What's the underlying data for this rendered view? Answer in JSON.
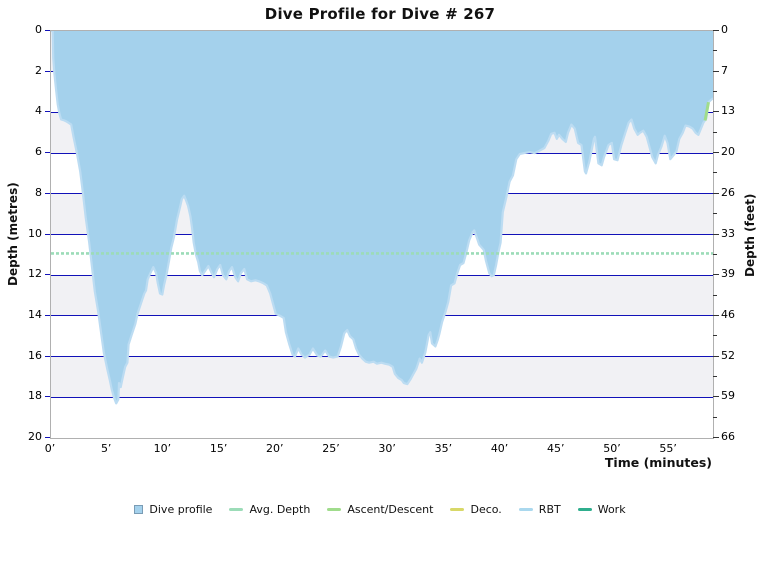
{
  "title": "Dive Profile for Dive # 267",
  "axes": {
    "x_label": "Time (minutes)",
    "left_label": "Depth (metres)",
    "right_label": "Depth (feet)",
    "x_tick_minutes": [
      0,
      5,
      10,
      15,
      20,
      25,
      30,
      35,
      40,
      45,
      50,
      55
    ],
    "x_tick_labels": [
      "0’",
      "5’",
      "10’",
      "15’",
      "20’",
      "25’",
      "30’",
      "35’",
      "40’",
      "45’",
      "50’",
      "55’"
    ],
    "left_tick_metres": [
      0,
      2,
      4,
      6,
      8,
      10,
      12,
      14,
      16,
      18,
      20
    ],
    "right_tick_labels": [
      "0",
      "7",
      "13",
      "20",
      "26",
      "33",
      "39",
      "46",
      "52",
      "59",
      "66"
    ]
  },
  "colors": {
    "profile_fill": "#a4d1ec",
    "profile_stroke": "#bcdcf2",
    "gridline": "#1111b8",
    "band_grey": "#f1f1f4",
    "band_white": "#ffffff",
    "plot_border": "#b0b0b0",
    "avg_depth_line": "#9cdcb8",
    "ascent_descent": "#a0dc8c",
    "deco": "#d8d868",
    "rbt": "#aad8ee",
    "work": "#2fae8d",
    "legend_square_border": "#7a9cb5",
    "tick_dash_dark": "#333333"
  },
  "legend": [
    {
      "label": "Dive profile",
      "type": "square",
      "color": "#a4d1ec",
      "border": "#7a9cb5"
    },
    {
      "label": "Avg. Depth",
      "type": "line",
      "color": "#9cdcb8"
    },
    {
      "label": "Ascent/Descent",
      "type": "line",
      "color": "#a0dc8c"
    },
    {
      "label": "Deco.",
      "type": "line",
      "color": "#d8d868"
    },
    {
      "label": "RBT",
      "type": "line",
      "color": "#aad8ee"
    },
    {
      "label": "Work",
      "type": "line",
      "color": "#2fae8d"
    }
  ],
  "chart_data": {
    "type": "area",
    "title": "Dive Profile for Dive # 267",
    "xlabel": "Time (minutes)",
    "ylabel_left": "Depth (metres)",
    "ylabel_right": "Depth (feet)",
    "xlim": [
      0,
      58.9
    ],
    "ylim_metres": [
      0,
      20
    ],
    "ylim_feet": [
      0,
      66
    ],
    "y_inverted": true,
    "grid": "horizontal navy gridlines every 2 m over alternating grey/white depth bands",
    "legend_position": "bottom center",
    "avg_depth_m": 10.93,
    "max_depth_m": 18.3,
    "duration_min": 58.9,
    "series": [
      {
        "name": "Dive profile",
        "points_min_depth": [
          [
            0,
            0
          ],
          [
            0.15,
            0
          ],
          [
            0.2,
            1.3
          ],
          [
            0.3,
            2.1
          ],
          [
            0.45,
            2.9
          ],
          [
            0.6,
            3.6
          ],
          [
            0.75,
            4.05
          ],
          [
            0.9,
            4.35
          ],
          [
            1.2,
            4.4
          ],
          [
            1.4,
            4.45
          ],
          [
            1.8,
            4.6
          ],
          [
            2,
            5.2
          ],
          [
            2.3,
            6
          ],
          [
            2.6,
            6.9
          ],
          [
            2.85,
            8
          ],
          [
            3.1,
            9.2
          ],
          [
            3.4,
            10.4
          ],
          [
            3.65,
            11.6
          ],
          [
            3.9,
            12.8
          ],
          [
            4.2,
            13.8
          ],
          [
            4.45,
            14.8
          ],
          [
            4.7,
            15.8
          ],
          [
            5,
            16.6
          ],
          [
            5.25,
            17.2
          ],
          [
            5.4,
            17.6
          ],
          [
            5.6,
            18
          ],
          [
            5.8,
            18.3
          ],
          [
            6,
            18.1
          ],
          [
            6.05,
            17.3
          ],
          [
            6.2,
            17.5
          ],
          [
            6.4,
            17
          ],
          [
            6.6,
            16.5
          ],
          [
            6.8,
            16.3
          ],
          [
            6.9,
            15.4
          ],
          [
            7.2,
            14.9
          ],
          [
            7.5,
            14.4
          ],
          [
            7.7,
            13.9
          ],
          [
            8,
            13.4
          ],
          [
            8.3,
            12.9
          ],
          [
            8.45,
            12.75
          ],
          [
            8.6,
            12.2
          ],
          [
            8.8,
            11.95
          ],
          [
            9.1,
            11.6
          ],
          [
            9.35,
            11.9
          ],
          [
            9.5,
            12.4
          ],
          [
            9.7,
            12.9
          ],
          [
            9.9,
            12.95
          ],
          [
            10.05,
            12.5
          ],
          [
            10.3,
            11.9
          ],
          [
            10.5,
            11.3
          ],
          [
            10.7,
            10.65
          ],
          [
            10.95,
            10.1
          ],
          [
            11.2,
            9.3
          ],
          [
            11.5,
            8.6
          ],
          [
            11.65,
            8.25
          ],
          [
            11.85,
            8.1
          ],
          [
            12,
            8.3
          ],
          [
            12.2,
            8.6
          ],
          [
            12.4,
            9.1
          ],
          [
            12.55,
            9.7
          ],
          [
            12.7,
            10.4
          ],
          [
            12.9,
            11
          ],
          [
            13.1,
            11.35
          ],
          [
            13.25,
            11.8
          ],
          [
            13.45,
            12
          ],
          [
            13.7,
            11.8
          ],
          [
            14,
            11.55
          ],
          [
            14.25,
            11.85
          ],
          [
            14.5,
            12.1
          ],
          [
            14.8,
            11.7
          ],
          [
            15.05,
            11.5
          ],
          [
            15.3,
            12
          ],
          [
            15.6,
            12.2
          ],
          [
            15.85,
            11.8
          ],
          [
            16.1,
            11.6
          ],
          [
            16.4,
            12.1
          ],
          [
            16.65,
            12.3
          ],
          [
            16.9,
            11.9
          ],
          [
            17.2,
            11.7
          ],
          [
            17.45,
            12.2
          ],
          [
            17.8,
            12.3
          ],
          [
            18.2,
            12.25
          ],
          [
            18.5,
            12.3
          ],
          [
            18.9,
            12.4
          ],
          [
            19.2,
            12.5
          ],
          [
            19.5,
            12.9
          ],
          [
            19.8,
            13.5
          ],
          [
            20,
            13.9
          ],
          [
            20.4,
            14
          ],
          [
            20.7,
            14.1
          ],
          [
            20.9,
            14.8
          ],
          [
            21.2,
            15.4
          ],
          [
            21.5,
            15.9
          ],
          [
            21.7,
            16
          ],
          [
            22,
            15.6
          ],
          [
            22.3,
            15.9
          ],
          [
            22.6,
            16.05
          ],
          [
            23,
            15.9
          ],
          [
            23.3,
            15.6
          ],
          [
            23.7,
            15.95
          ],
          [
            24,
            16
          ],
          [
            24.4,
            15.7
          ],
          [
            24.75,
            16
          ],
          [
            25.1,
            16.05
          ],
          [
            25.5,
            16
          ],
          [
            25.8,
            15.5
          ],
          [
            26.1,
            14.85
          ],
          [
            26.35,
            14.7
          ],
          [
            26.6,
            15
          ],
          [
            26.9,
            15.15
          ],
          [
            27.15,
            15.6
          ],
          [
            27.4,
            15.9
          ],
          [
            27.7,
            16.1
          ],
          [
            28,
            16.25
          ],
          [
            28.3,
            16.3
          ],
          [
            28.7,
            16.25
          ],
          [
            29,
            16.35
          ],
          [
            29.4,
            16.3
          ],
          [
            29.7,
            16.35
          ],
          [
            30.1,
            16.4
          ],
          [
            30.4,
            16.5
          ],
          [
            30.6,
            16.85
          ],
          [
            30.9,
            17.05
          ],
          [
            31.2,
            17.15
          ],
          [
            31.4,
            17.3
          ],
          [
            31.7,
            17.35
          ],
          [
            32,
            17.1
          ],
          [
            32.2,
            16.9
          ],
          [
            32.5,
            16.6
          ],
          [
            32.8,
            16.1
          ],
          [
            33,
            16.3
          ],
          [
            33.3,
            15.8
          ],
          [
            33.6,
            14.95
          ],
          [
            33.75,
            14.8
          ],
          [
            33.9,
            15.35
          ],
          [
            34.2,
            15.5
          ],
          [
            34.4,
            15.2
          ],
          [
            34.55,
            14.9
          ],
          [
            34.8,
            14.3
          ],
          [
            35.1,
            13.8
          ],
          [
            35.35,
            13.3
          ],
          [
            35.6,
            12.5
          ],
          [
            35.9,
            12.4
          ],
          [
            36.15,
            11.9
          ],
          [
            36.4,
            11.5
          ],
          [
            36.7,
            11.4
          ],
          [
            36.95,
            10.9
          ],
          [
            37.2,
            10.3
          ],
          [
            37.5,
            9.9
          ],
          [
            37.65,
            9.8
          ],
          [
            37.85,
            10.1
          ],
          [
            38.1,
            10.5
          ],
          [
            38.5,
            10.75
          ],
          [
            38.7,
            11.3
          ],
          [
            39,
            11.9
          ],
          [
            39.2,
            12.05
          ],
          [
            39.4,
            12
          ],
          [
            39.6,
            11.5
          ],
          [
            39.8,
            10.9
          ],
          [
            40,
            10.4
          ],
          [
            40.2,
            8.9
          ],
          [
            40.5,
            8.2
          ],
          [
            40.8,
            7.4
          ],
          [
            41.1,
            7.1
          ],
          [
            41.4,
            6.3
          ],
          [
            41.7,
            6.05
          ],
          [
            42.1,
            6
          ],
          [
            42.6,
            5.95
          ],
          [
            43,
            6
          ],
          [
            43.4,
            5.9
          ],
          [
            43.9,
            5.75
          ],
          [
            44.25,
            5.4
          ],
          [
            44.5,
            5.05
          ],
          [
            44.8,
            5
          ],
          [
            45,
            5.3
          ],
          [
            45.2,
            5.1
          ],
          [
            45.5,
            5.3
          ],
          [
            45.8,
            5.45
          ],
          [
            46,
            5
          ],
          [
            46.3,
            4.6
          ],
          [
            46.6,
            4.8
          ],
          [
            46.9,
            5.5
          ],
          [
            47.2,
            5.6
          ],
          [
            47.5,
            6.9
          ],
          [
            47.6,
            7
          ],
          [
            47.9,
            6.4
          ],
          [
            48.3,
            5.3
          ],
          [
            48.4,
            5.2
          ],
          [
            48.7,
            6.5
          ],
          [
            49,
            6.6
          ],
          [
            49.2,
            6.2
          ],
          [
            49.6,
            5.6
          ],
          [
            49.9,
            5.5
          ],
          [
            50.1,
            6.3
          ],
          [
            50.4,
            6.35
          ],
          [
            50.75,
            5.6
          ],
          [
            51.1,
            5
          ],
          [
            51.4,
            4.5
          ],
          [
            51.65,
            4.35
          ],
          [
            51.9,
            4.8
          ],
          [
            52.2,
            5.1
          ],
          [
            52.4,
            5
          ],
          [
            52.7,
            4.9
          ],
          [
            53,
            5.2
          ],
          [
            53.25,
            5.7
          ],
          [
            53.5,
            6.2
          ],
          [
            53.8,
            6.5
          ],
          [
            54,
            6.1
          ],
          [
            54.3,
            5.7
          ],
          [
            54.6,
            5.15
          ],
          [
            54.85,
            5.5
          ],
          [
            55.1,
            6.3
          ],
          [
            55.4,
            6.1
          ],
          [
            55.65,
            5.9
          ],
          [
            55.9,
            5.3
          ],
          [
            56.2,
            5
          ],
          [
            56.45,
            4.65
          ],
          [
            56.8,
            4.7
          ],
          [
            57.1,
            4.8
          ],
          [
            57.35,
            5
          ],
          [
            57.6,
            5.1
          ],
          [
            57.9,
            4.7
          ],
          [
            58.05,
            4.5
          ],
          [
            58.3,
            4.3
          ],
          [
            58.5,
            3.5
          ],
          [
            58.9,
            3.3
          ]
        ]
      },
      {
        "name": "Ascent/Descent",
        "points_min_depth": [
          [
            58.2,
            4.4
          ],
          [
            58.5,
            3.5
          ]
        ]
      }
    ]
  }
}
